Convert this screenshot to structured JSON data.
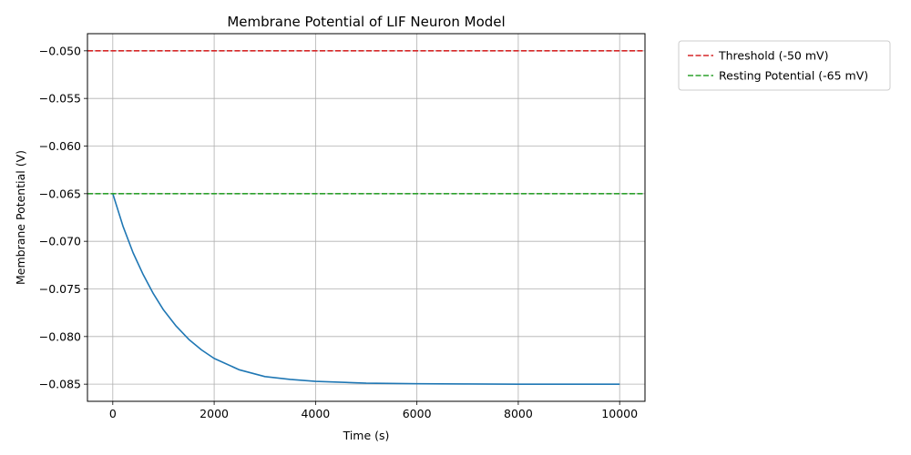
{
  "chart_data": {
    "type": "line",
    "title": "Membrane Potential of LIF Neuron Model",
    "xlabel": "Time (s)",
    "ylabel": "Membrane Potential (V)",
    "xlim": [
      -500,
      10500
    ],
    "ylim": [
      -0.0868,
      -0.0482
    ],
    "xticks": [
      0,
      2000,
      4000,
      6000,
      8000,
      10000
    ],
    "xtick_labels": [
      "0",
      "2000",
      "4000",
      "6000",
      "8000",
      "10000"
    ],
    "yticks": [
      -0.085,
      -0.08,
      -0.075,
      -0.07,
      -0.065,
      -0.06,
      -0.055,
      -0.05
    ],
    "ytick_labels": [
      "−0.085",
      "−0.080",
      "−0.075",
      "−0.070",
      "−0.065",
      "−0.060",
      "−0.055",
      "−0.050"
    ],
    "grid": true,
    "legend_position": "outside-top-right",
    "series": [
      {
        "kind": "line",
        "color": "#1f77b4",
        "x": [
          0,
          200,
          400,
          600,
          800,
          1000,
          1250,
          1500,
          1750,
          2000,
          2500,
          3000,
          3500,
          4000,
          5000,
          6000,
          7000,
          8000,
          9000,
          10000
        ],
        "y": [
          -0.065,
          -0.0684,
          -0.0712,
          -0.0735,
          -0.0755,
          -0.0772,
          -0.0789,
          -0.0803,
          -0.0814,
          -0.0823,
          -0.0835,
          -0.0842,
          -0.0845,
          -0.0847,
          -0.0849,
          -0.08495,
          -0.08498,
          -0.085,
          -0.085,
          -0.085
        ]
      },
      {
        "kind": "hline",
        "name": "Threshold (-50 mV)",
        "y": -0.05,
        "color": "#d62728",
        "dashed": true
      },
      {
        "kind": "hline",
        "name": "Resting Potential (-65 mV)",
        "y": -0.065,
        "color": "#2ca02c",
        "dashed": true
      }
    ]
  }
}
